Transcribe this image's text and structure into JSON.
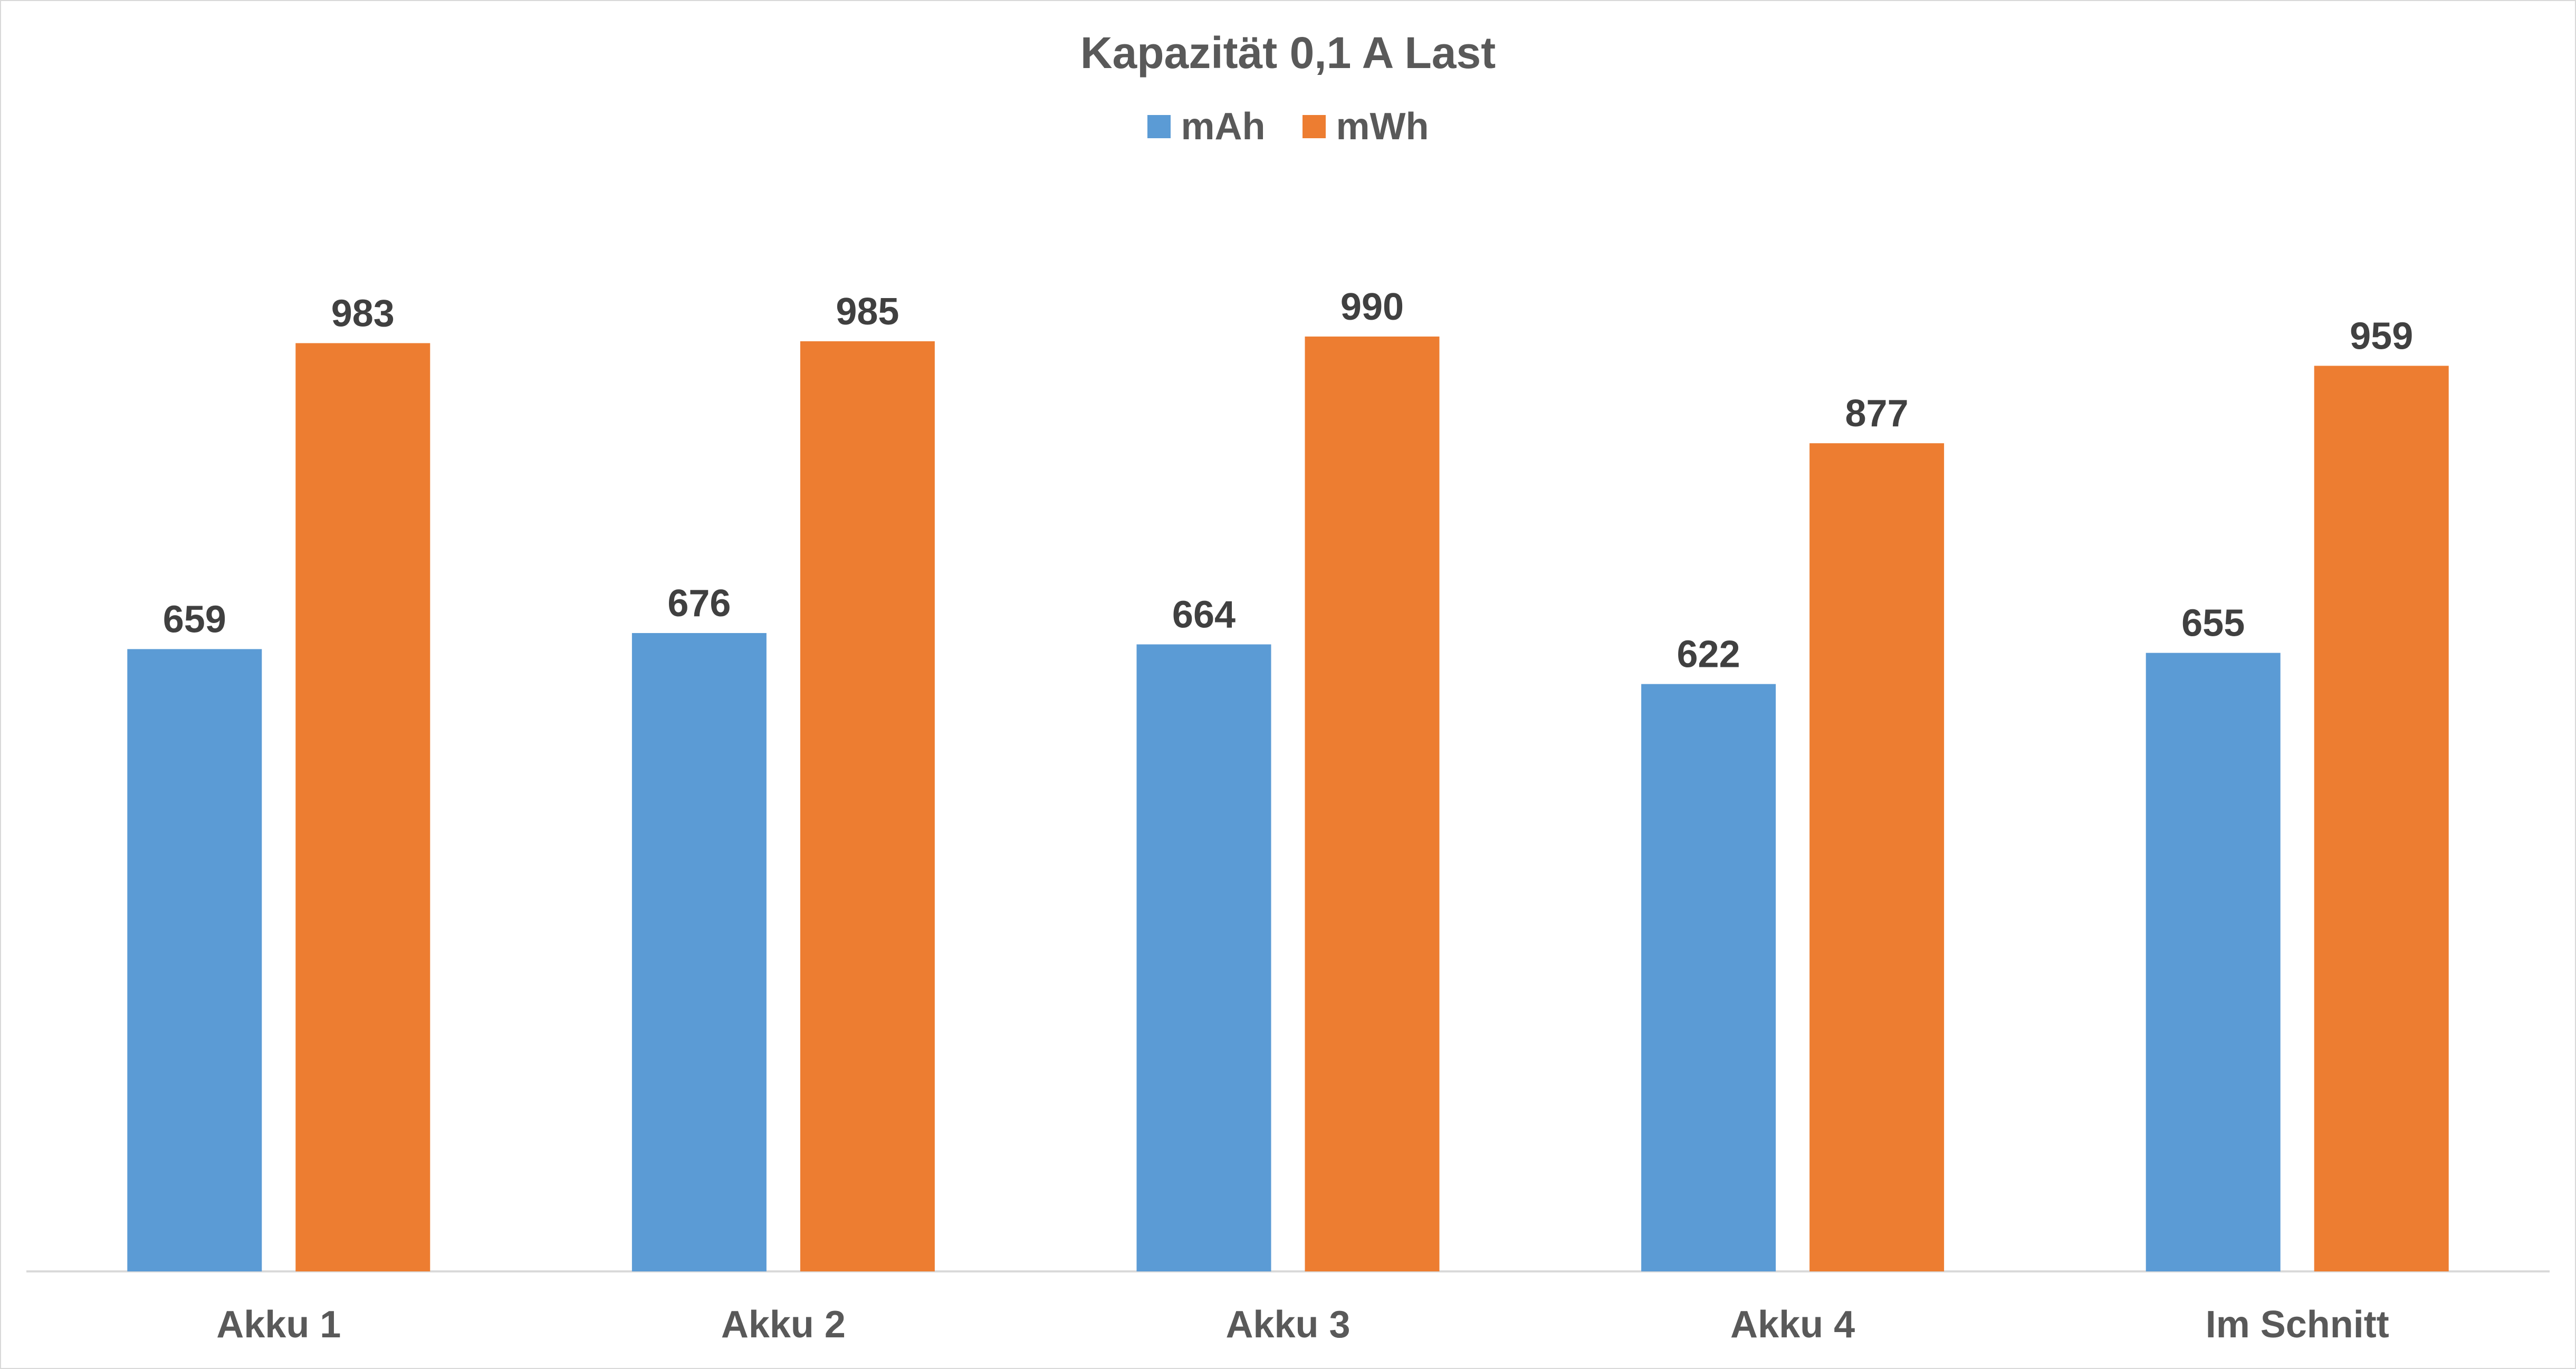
{
  "chart_data": {
    "type": "bar",
    "title": "Kapazität 0,1 A Last",
    "categories": [
      "Akku 1",
      "Akku 2",
      "Akku 3",
      "Akku 4",
      "Im Schnitt"
    ],
    "series": [
      {
        "name": "mAh",
        "color": "#5b9bd5",
        "values": [
          659,
          676,
          664,
          622,
          655
        ]
      },
      {
        "name": "mWh",
        "color": "#ed7d31",
        "values": [
          983,
          985,
          990,
          877,
          959
        ]
      }
    ],
    "ylim": [
      0,
      1200
    ],
    "grid": false,
    "legend_position": "top",
    "show_data_labels": true
  }
}
